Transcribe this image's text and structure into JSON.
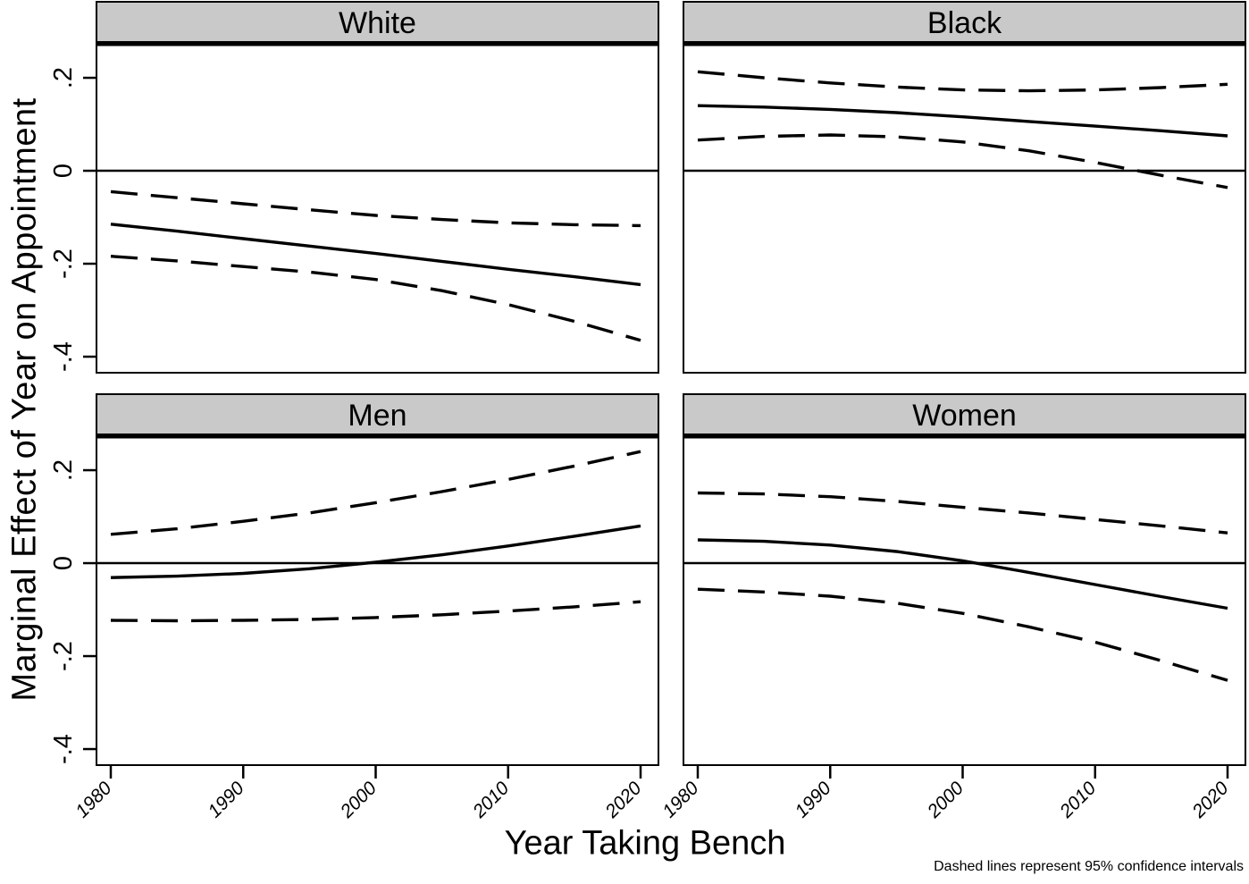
{
  "figure": {
    "y_axis_title": "Marginal Effect of Year on Appointment",
    "x_axis_title": "Year Taking Bench",
    "note": "Dashed lines represent 95% confidence intervals"
  },
  "colors": {
    "background": "#ffffff",
    "header_bg": "#c9c9c9",
    "border": "#000000",
    "line": "#000000",
    "text": "#000000"
  },
  "chart_data": {
    "type": "line",
    "layout": "2x2-small-multiples",
    "title": "",
    "xlabel": "Year Taking Bench",
    "ylabel": "Marginal Effect of Year on Appointment",
    "note": "Dashed lines represent 95% confidence intervals",
    "grid": false,
    "x": [
      1980,
      1985,
      1990,
      1995,
      2000,
      2005,
      2010,
      2015,
      2020
    ],
    "x_ticks": [
      1980,
      1990,
      2000,
      2010,
      2020
    ],
    "x_tick_labels": [
      "1980",
      "1990",
      "2000",
      "2010",
      "2020"
    ],
    "xlim": [
      1978.9,
      2021.3
    ],
    "y_ticks": [
      0.2,
      0,
      -0.2,
      -0.4
    ],
    "y_tick_labels": [
      ".2",
      "0",
      "-.2",
      "-.4"
    ],
    "ylim": [
      -0.434,
      0.277
    ],
    "zero_reference_line": true,
    "series_styles": {
      "fit": "solid",
      "ci_upper": "dashed",
      "ci_lower": "dashed"
    },
    "panels": [
      {
        "title": "White",
        "row": 0,
        "col": 0,
        "fit": [
          -0.115,
          -0.13,
          -0.146,
          -0.162,
          -0.178,
          -0.195,
          -0.212,
          -0.228,
          -0.245
        ],
        "ci_upper": [
          -0.045,
          -0.058,
          -0.071,
          -0.084,
          -0.096,
          -0.105,
          -0.112,
          -0.116,
          -0.118
        ],
        "ci_lower": [
          -0.184,
          -0.194,
          -0.206,
          -0.218,
          -0.234,
          -0.258,
          -0.288,
          -0.324,
          -0.365
        ]
      },
      {
        "title": "Black",
        "row": 0,
        "col": 1,
        "fit": [
          0.14,
          0.137,
          0.132,
          0.125,
          0.116,
          0.106,
          0.096,
          0.086,
          0.075
        ],
        "ci_upper": [
          0.213,
          0.2,
          0.189,
          0.18,
          0.174,
          0.172,
          0.174,
          0.179,
          0.186
        ],
        "ci_lower": [
          0.066,
          0.074,
          0.077,
          0.073,
          0.062,
          0.043,
          0.018,
          -0.01,
          -0.036
        ]
      },
      {
        "title": "Men",
        "row": 1,
        "col": 0,
        "fit": [
          -0.031,
          -0.028,
          -0.022,
          -0.012,
          0.002,
          0.018,
          0.037,
          0.058,
          0.08
        ],
        "ci_upper": [
          0.062,
          0.074,
          0.09,
          0.108,
          0.13,
          0.154,
          0.18,
          0.209,
          0.24
        ],
        "ci_lower": [
          -0.123,
          -0.124,
          -0.123,
          -0.121,
          -0.117,
          -0.111,
          -0.103,
          -0.094,
          -0.083
        ]
      },
      {
        "title": "Women",
        "row": 1,
        "col": 1,
        "fit": [
          0.05,
          0.047,
          0.039,
          0.025,
          0.005,
          -0.02,
          -0.046,
          -0.072,
          -0.097
        ],
        "ci_upper": [
          0.151,
          0.149,
          0.143,
          0.133,
          0.12,
          0.108,
          0.094,
          0.08,
          0.065
        ],
        "ci_lower": [
          -0.056,
          -0.062,
          -0.071,
          -0.086,
          -0.108,
          -0.137,
          -0.17,
          -0.21,
          -0.252
        ]
      }
    ]
  }
}
